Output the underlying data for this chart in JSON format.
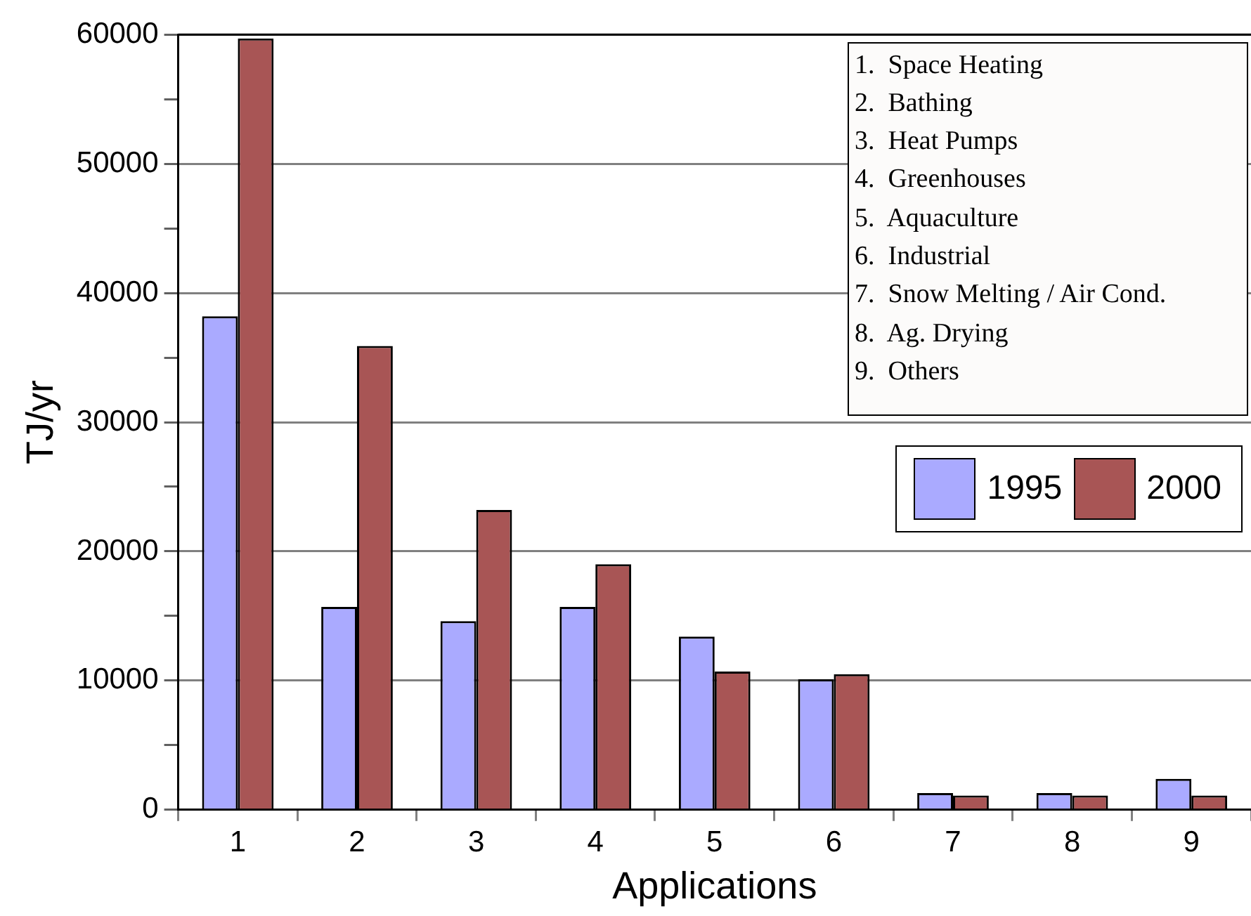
{
  "chart_data": {
    "type": "bar",
    "xlabel": "Applications",
    "ylabel": "TJ/yr",
    "categories": [
      "1",
      "2",
      "3",
      "4",
      "5",
      "6",
      "7",
      "8",
      "9"
    ],
    "series": [
      {
        "name": "1995",
        "color": "#aaaaff",
        "values": [
          38200,
          15700,
          14600,
          15700,
          13400,
          10100,
          1300,
          1300,
          2400
        ]
      },
      {
        "name": "2000",
        "color": "#a85555",
        "values": [
          59700,
          35900,
          23200,
          19000,
          10700,
          10500,
          1100,
          1100,
          1100
        ]
      }
    ],
    "ylim": [
      0,
      60000
    ],
    "yticks": [
      0,
      {
        "value": 5000,
        "label": null
      },
      10000,
      {
        "value": 15000,
        "label": null
      },
      20000,
      {
        "value": 25000,
        "label": null
      },
      30000,
      {
        "value": 35000,
        "label": null
      },
      40000,
      {
        "value": 45000,
        "label": null
      },
      50000,
      {
        "value": 55000,
        "label": null
      },
      60000
    ],
    "grid": "y",
    "legend": "right",
    "annotations": [
      "1.  Space Heating",
      "2.  Bathing",
      "3.  Heat Pumps",
      "4.  Greenhouses",
      "5.  Aquaculture",
      "6.  Industrial",
      "7.  Snow Melting / Air Cond.",
      "8.  Ag. Drying",
      "9.  Others"
    ]
  }
}
